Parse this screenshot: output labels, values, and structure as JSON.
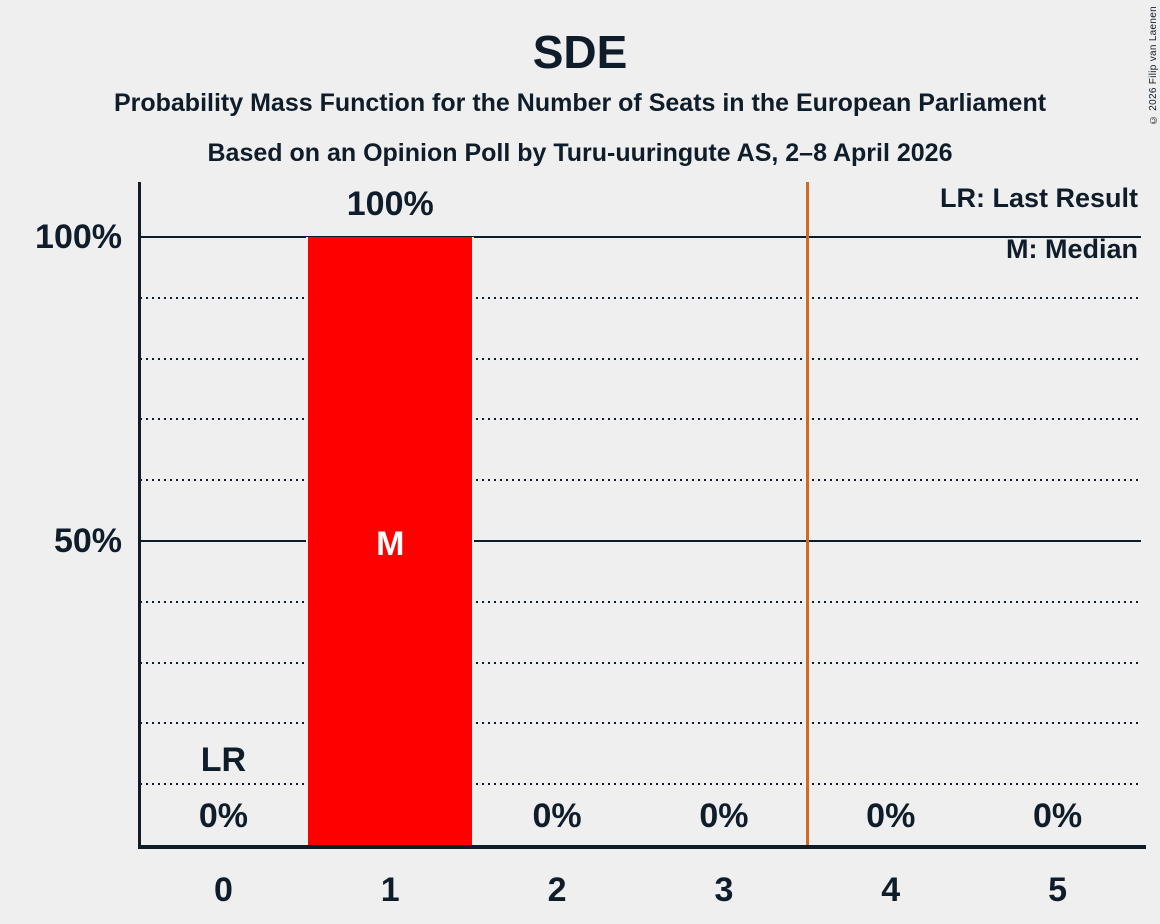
{
  "copyright": "© 2026 Filip van Laenen",
  "colors": {
    "background": "#EFEFEF",
    "text": "#0F1D2B",
    "bar": "#FF0000",
    "bar_text": "#FFFFFF",
    "threshold_line": "#D2691E"
  },
  "chart_data": {
    "type": "bar",
    "title": "SDE",
    "subtitles": [
      "Probability Mass Function for the Number of Seats in the European Parliament",
      "Based on an Opinion Poll by Turu-uuringute AS, 2–8 April 2026"
    ],
    "categories": [
      "0",
      "1",
      "2",
      "3",
      "4",
      "5"
    ],
    "values": [
      0,
      100,
      0,
      0,
      0,
      0
    ],
    "value_labels": [
      "0%",
      "100%",
      "0%",
      "0%",
      "0%",
      "0%"
    ],
    "xlabel": "",
    "ylabel": "",
    "ylim": [
      0,
      110
    ],
    "ytick_labels": [
      "100%",
      "50%"
    ],
    "ytick_values": [
      100,
      50
    ],
    "gridlines": {
      "dotted_every_pct": 10,
      "solid_at_pct": [
        50,
        100
      ]
    },
    "legend": [
      "LR: Last Result",
      "M: Median"
    ],
    "legend_position": "top-right",
    "annotations": {
      "median_marker": {
        "label": "M",
        "seats": 1,
        "at_pct": 50
      },
      "last_result_marker": {
        "label": "LR",
        "seats": 0
      },
      "threshold_line_x": 3.5
    }
  }
}
